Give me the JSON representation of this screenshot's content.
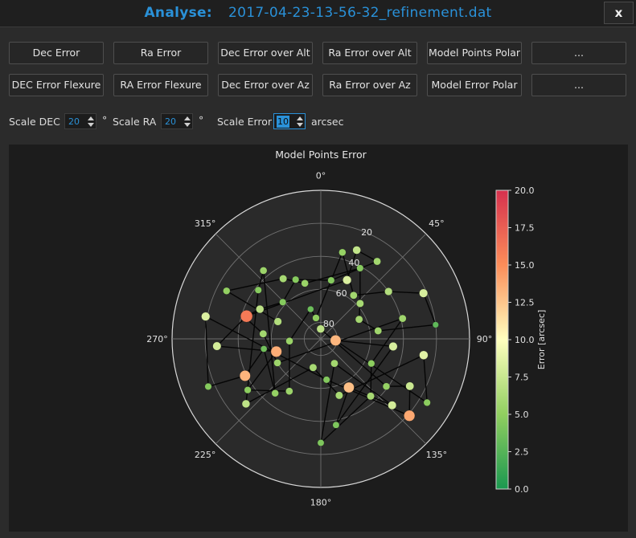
{
  "window": {
    "title_label": "Analyse:",
    "title_file": "2017-04-23-13-56-32_refinement.dat",
    "close_label": "x"
  },
  "buttons": {
    "row1": [
      "Dec Error",
      "Ra Error",
      "Dec Error over Alt",
      "Ra Error over Alt",
      "Model Points Polar",
      "..."
    ],
    "row2": [
      "DEC Error Flexure",
      "RA Error Flexure",
      "Dec Error over Az",
      "Ra Error over Az",
      "Model Error Polar",
      "..."
    ]
  },
  "scales": {
    "dec_label": "Scale DEC",
    "dec_value": "20",
    "dec_unit": "°",
    "ra_label": "Scale RA",
    "ra_value": "20",
    "ra_unit": "°",
    "error_label": "Scale Error",
    "error_value": "10",
    "error_unit": "arcsec"
  },
  "colors": {
    "accent": "#2a91d8",
    "background": "#2b2b2b",
    "plot_background": "#1c1c1c"
  },
  "chart_data": {
    "type": "scatter",
    "projection": "polar",
    "title": "Model Points Error",
    "angle_direction": "clockwise",
    "angle_zero": "top",
    "angle_ticks": [
      "0°",
      "45°",
      "90°",
      "135°",
      "180°",
      "225°",
      "270°",
      "315°"
    ],
    "radial_ticks": [
      "20",
      "40",
      "60",
      "80"
    ],
    "radial_axis": "altitude, 90 at center",
    "grid": true,
    "colorbar": {
      "label": "Error [arcsec]",
      "min": 0,
      "max": 20,
      "ticks": [
        "0.0",
        "2.5",
        "5.0",
        "7.5",
        "10.0",
        "12.5",
        "15.0",
        "17.5",
        "20.0"
      ],
      "colormap": "green-yellow-red"
    },
    "points": [
      {
        "az": 359,
        "alt": 84,
        "err": 7.0
      },
      {
        "az": 10,
        "alt": 54,
        "err": 4.5
      },
      {
        "az": 14,
        "alt": 36,
        "err": 5.2
      },
      {
        "az": 22,
        "alt": 32,
        "err": 7.2
      },
      {
        "az": 24,
        "alt": 51,
        "err": 8.3
      },
      {
        "az": 29,
        "alt": 41,
        "err": 4.6
      },
      {
        "az": 36,
        "alt": 32,
        "err": 5.8
      },
      {
        "az": 37,
        "alt": 57,
        "err": 5.8
      },
      {
        "az": 48,
        "alt": 58,
        "err": 6.0
      },
      {
        "az": 55,
        "alt": 40,
        "err": 6.5
      },
      {
        "az": 63,
        "alt": 64,
        "err": 5.9
      },
      {
        "az": 66,
        "alt": 22,
        "err": 8.2
      },
      {
        "az": 76,
        "alt": 39,
        "err": 5.7
      },
      {
        "az": 82,
        "alt": 55,
        "err": 5.7
      },
      {
        "az": 83,
        "alt": 20,
        "err": 2.9
      },
      {
        "az": 96,
        "alt": 81,
        "err": 13.2
      },
      {
        "az": 96,
        "alt": 46,
        "err": 8.2
      },
      {
        "az": 99,
        "alt": 27,
        "err": 8.7
      },
      {
        "az": 116,
        "alt": 56,
        "err": 4.8
      },
      {
        "az": 118,
        "alt": 29,
        "err": 7.6
      },
      {
        "az": 121,
        "alt": 15,
        "err": 4.8
      },
      {
        "az": 126,
        "alt": 41,
        "err": 5.2
      },
      {
        "az": 131,
        "alt": 19,
        "err": 13.8
      },
      {
        "az": 133,
        "alt": 31,
        "err": 8.0
      },
      {
        "az": 139,
        "alt": 44,
        "err": 6.0
      },
      {
        "az": 150,
        "alt": 56,
        "err": 12.8
      },
      {
        "az": 151,
        "alt": 73,
        "err": 5.8
      },
      {
        "az": 162,
        "alt": 54,
        "err": 6.1
      },
      {
        "az": 170,
        "alt": 37,
        "err": 4.2
      },
      {
        "az": 172,
        "alt": 65,
        "err": 4.4
      },
      {
        "az": 180,
        "alt": 27,
        "err": 4.2
      },
      {
        "az": 195,
        "alt": 72,
        "err": 6.0
      },
      {
        "az": 211,
        "alt": 53,
        "err": 5.5
      },
      {
        "az": 220,
        "alt": 47,
        "err": 5.2
      },
      {
        "az": 229,
        "alt": 30,
        "err": 7.0
      },
      {
        "az": 235,
        "alt": 36,
        "err": 4.8
      },
      {
        "az": 241,
        "alt": 60,
        "err": 5.5
      },
      {
        "az": 244,
        "alt": 39,
        "err": 13.3
      },
      {
        "az": 247,
        "alt": 16,
        "err": 4.5
      },
      {
        "az": 254,
        "alt": 62,
        "err": 13.6
      },
      {
        "az": 260,
        "alt": 55,
        "err": 3.7
      },
      {
        "az": 266,
        "alt": 71,
        "err": 5.4
      },
      {
        "az": 266,
        "alt": 27,
        "err": 8.0
      },
      {
        "az": 275,
        "alt": 55,
        "err": 5.8
      },
      {
        "az": 281,
        "alt": 19,
        "err": 8.4
      },
      {
        "az": 286,
        "alt": 42,
        "err": 5.5
      },
      {
        "az": 287,
        "alt": 43,
        "err": 16.0
      },
      {
        "az": 292,
        "alt": 62,
        "err": 6.5
      },
      {
        "az": 296,
        "alt": 49,
        "err": 7.0
      },
      {
        "az": 297,
        "alt": 26,
        "err": 5.1
      },
      {
        "az": 308,
        "alt": 42,
        "err": 4.6
      },
      {
        "az": 314,
        "alt": 58,
        "err": 4.5
      },
      {
        "az": 320,
        "alt": 36,
        "err": 5.5
      },
      {
        "az": 328,
        "alt": 47,
        "err": 6.0
      },
      {
        "az": 337,
        "alt": 51,
        "err": 4.6
      },
      {
        "az": 341,
        "alt": 71,
        "err": 3.5
      },
      {
        "az": 344,
        "alt": 55,
        "err": 5.4
      },
      {
        "az": 347,
        "alt": 77,
        "err": 5.0
      }
    ],
    "path_segments": [
      [
        0,
        21
      ],
      [
        21,
        19
      ],
      [
        19,
        22
      ],
      [
        22,
        29
      ],
      [
        29,
        44
      ],
      [
        44,
        38
      ],
      [
        38,
        37
      ],
      [
        37,
        40
      ],
      [
        40,
        33
      ],
      [
        33,
        52
      ],
      [
        52,
        50
      ],
      [
        50,
        34
      ],
      [
        34,
        31
      ],
      [
        31,
        27
      ],
      [
        27,
        17
      ],
      [
        17,
        20
      ],
      [
        20,
        15
      ],
      [
        15,
        16
      ],
      [
        16,
        28
      ],
      [
        28,
        25
      ],
      [
        25,
        23
      ],
      [
        23,
        26
      ],
      [
        26,
        30
      ],
      [
        30,
        24
      ],
      [
        24,
        18
      ],
      [
        18,
        12
      ],
      [
        12,
        36
      ],
      [
        36,
        43
      ],
      [
        43,
        45
      ],
      [
        45,
        48
      ],
      [
        48,
        51
      ],
      [
        51,
        54
      ],
      [
        54,
        1
      ],
      [
        1,
        6
      ],
      [
        6,
        3
      ],
      [
        3,
        4
      ],
      [
        4,
        46
      ],
      [
        46,
        42
      ],
      [
        42,
        39
      ],
      [
        39,
        35
      ],
      [
        35,
        32
      ],
      [
        32,
        41
      ],
      [
        41,
        55
      ],
      [
        55,
        57
      ],
      [
        57,
        2
      ],
      [
        2,
        7
      ],
      [
        7,
        9
      ],
      [
        9,
        11
      ],
      [
        11,
        14
      ],
      [
        14,
        13
      ],
      [
        13,
        10
      ],
      [
        10,
        8
      ],
      [
        8,
        5
      ],
      [
        5,
        56
      ],
      [
        56,
        53
      ],
      [
        53,
        49
      ],
      [
        49,
        47
      ]
    ]
  }
}
